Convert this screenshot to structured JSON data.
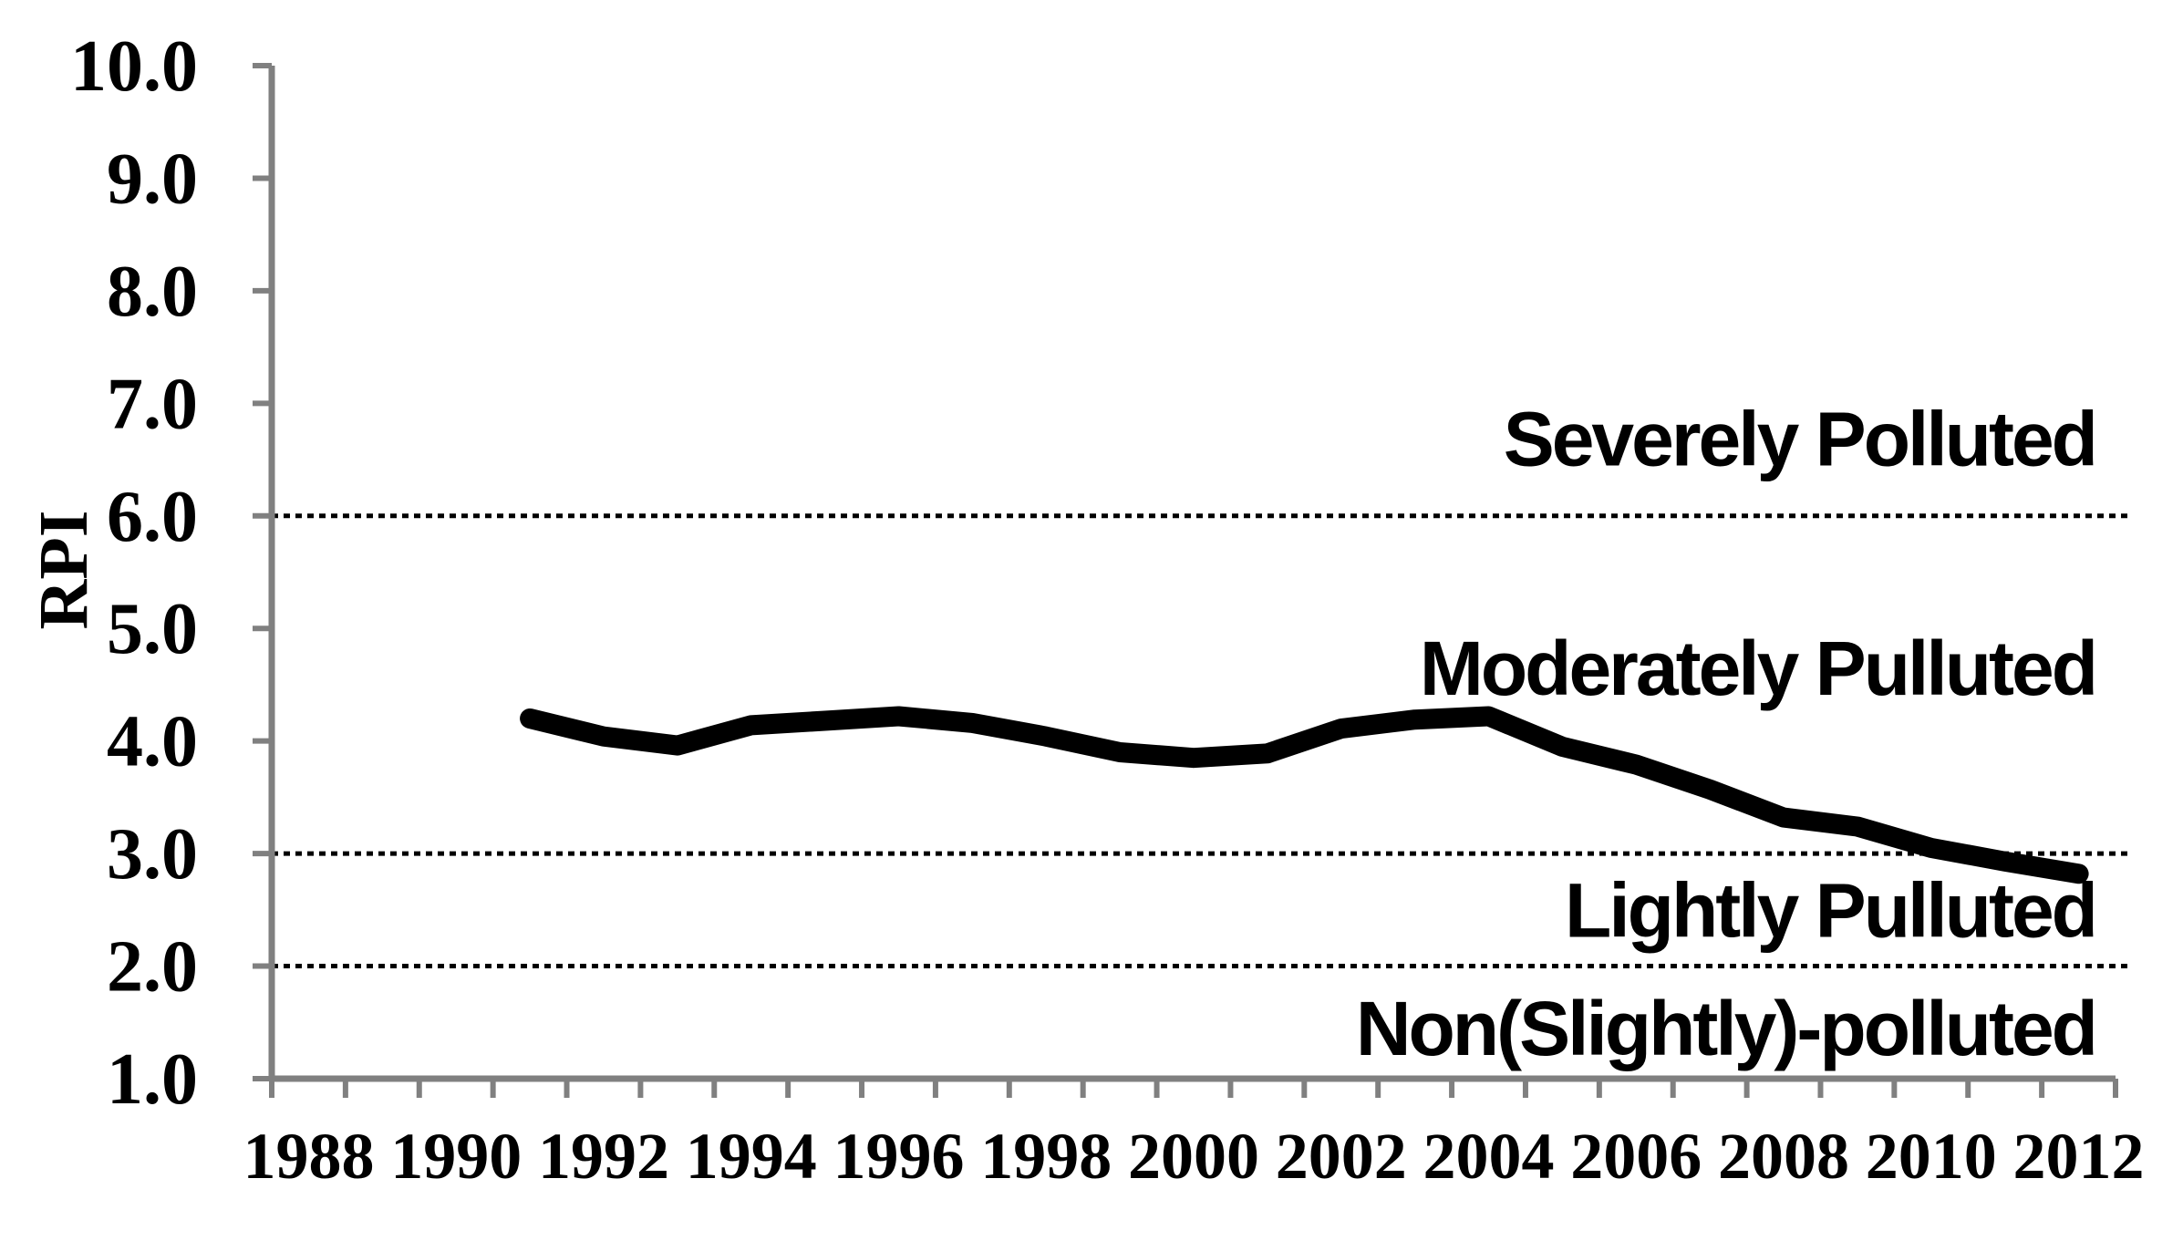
{
  "chart_data": {
    "type": "line",
    "title": "",
    "ylabel": "RPI",
    "xlabel": "",
    "ylim": [
      1.0,
      10.0
    ],
    "ytick_step": 1.0,
    "ytick_labels": [
      "10.0",
      "9.0",
      "8.0",
      "7.0",
      "6.0",
      "5.0",
      "4.0",
      "3.0",
      "2.0",
      "1.0"
    ],
    "x_axis_first_year": 1988,
    "x_axis_last_year": 2012,
    "xtick_labels": [
      "1988",
      "1990",
      "1992",
      "1994",
      "1996",
      "1998",
      "2000",
      "2002",
      "2004",
      "2006",
      "2008",
      "2010",
      "2012"
    ],
    "x_label_step": 2,
    "grid": "horizontal dotted lines at threshold values only",
    "legend_position": "none",
    "series": [
      {
        "name": "RPI",
        "x": [
          1991,
          1992,
          1993,
          1994,
          1995,
          1996,
          1997,
          1998,
          1999,
          2000,
          2001,
          2002,
          2003,
          2004,
          2005,
          2006,
          2007,
          2008,
          2009,
          2010,
          2011,
          2012
        ],
        "values": [
          4.2,
          4.04,
          3.96,
          4.14,
          4.18,
          4.22,
          4.16,
          4.04,
          3.9,
          3.85,
          3.89,
          4.11,
          4.19,
          4.22,
          3.95,
          3.79,
          3.57,
          3.32,
          3.24,
          3.05,
          2.93,
          2.82
        ]
      }
    ],
    "threshold_lines": [
      6.0,
      3.0,
      2.0
    ],
    "zone_labels": [
      {
        "text": "Severely Polluted",
        "rpi_baseline": 6.45
      },
      {
        "text": "Moderately Pulluted",
        "rpi_baseline": 4.41
      },
      {
        "text": "Lightly Pulluted",
        "rpi_baseline": 2.26
      },
      {
        "text": "Non(Slightly)-polluted",
        "rpi_baseline": 1.21
      }
    ],
    "colors": {
      "axis": "#808080",
      "line": "#000000",
      "text": "#000000",
      "background": "#ffffff"
    }
  }
}
